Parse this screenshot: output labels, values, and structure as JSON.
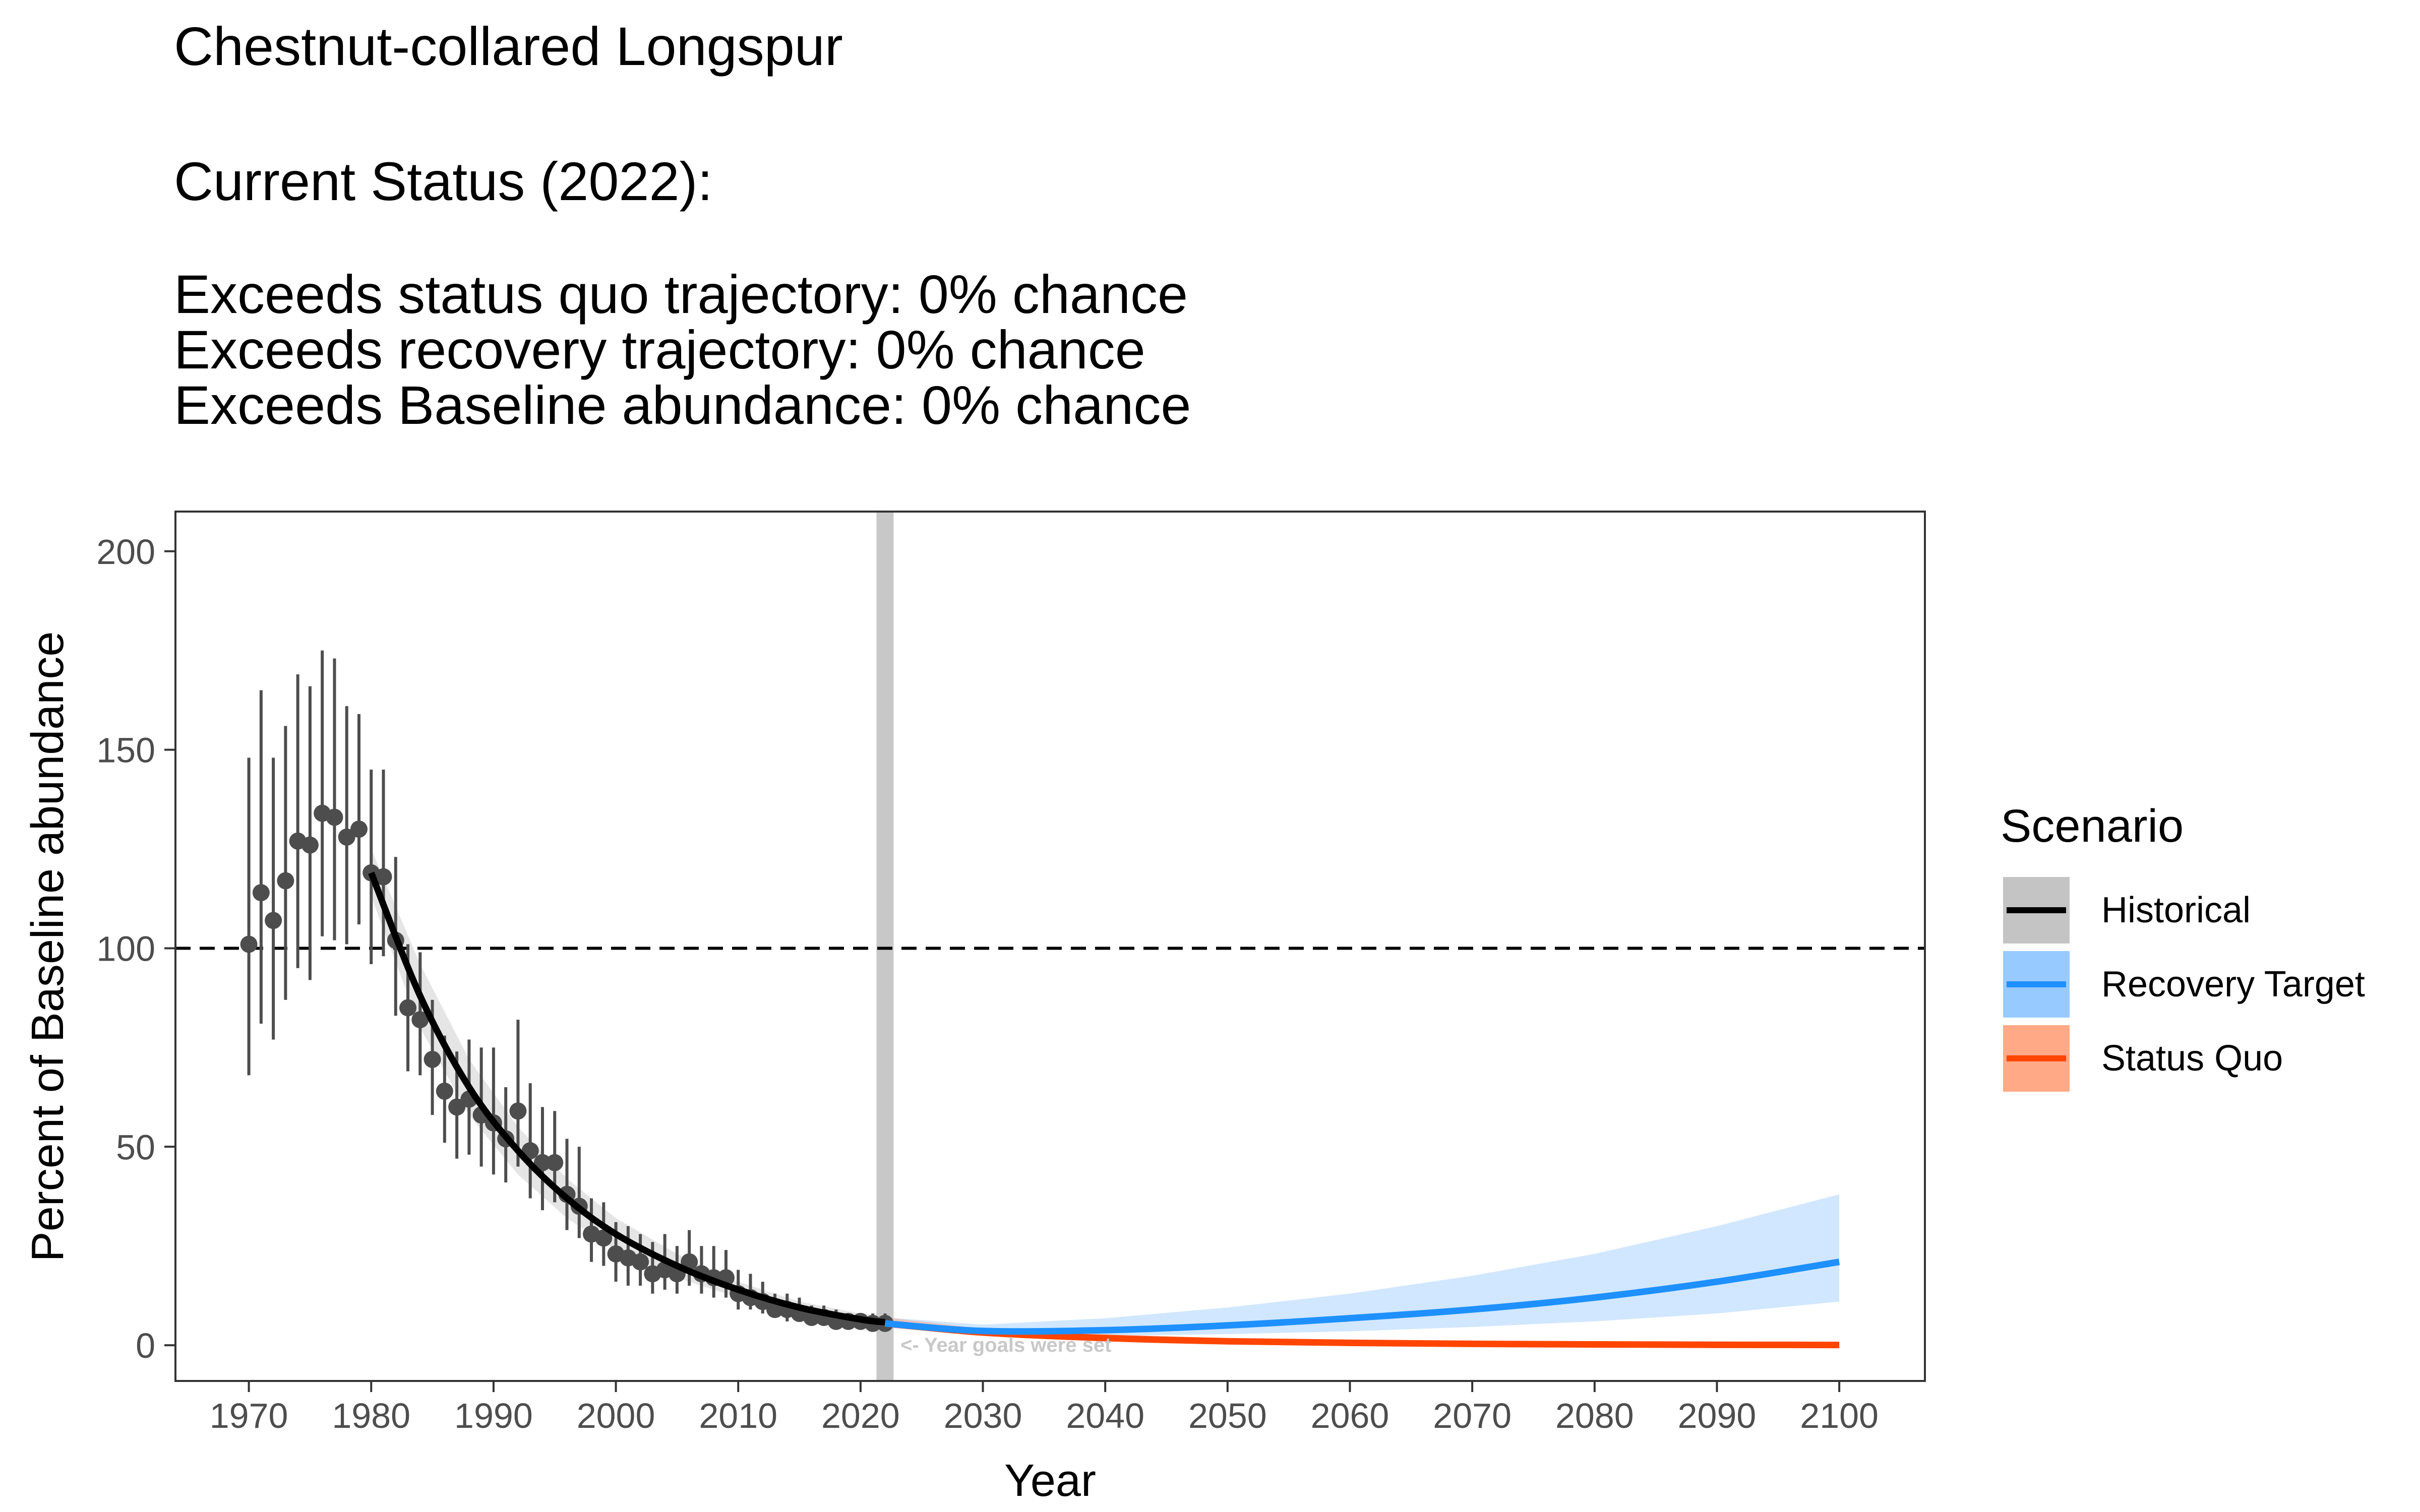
{
  "header": {
    "title": "Chestnut-collared Longspur",
    "status_heading": "Current Status (2022):",
    "lines": [
      "Exceeds status quo trajectory: 0% chance",
      "Exceeds recovery trajectory: 0% chance",
      "Exceeds Baseline abundance: 0% chance"
    ]
  },
  "chart_data": {
    "type": "line",
    "xlabel": "Year",
    "ylabel": "Percent of Baseline abundance",
    "xlim": [
      1964,
      2107
    ],
    "ylim": [
      -9,
      210
    ],
    "x_ticks": [
      1970,
      1980,
      1990,
      2000,
      2010,
      2020,
      2030,
      2040,
      2050,
      2060,
      2070,
      2080,
      2090,
      2100
    ],
    "y_ticks": [
      0,
      50,
      100,
      150,
      200
    ],
    "grid": false,
    "baseline_value": 100,
    "goal_year": 2022,
    "annotation": "<- Year goals were set",
    "legend": {
      "title": "Scenario",
      "position": "right",
      "items": [
        {
          "label": "Historical",
          "line_color": "#000000",
          "fill_color": "#bebebe"
        },
        {
          "label": "Recovery Target",
          "line_color": "#1e90ff",
          "fill_color": "#8cc4ff"
        },
        {
          "label": "Status Quo",
          "line_color": "#ff4500",
          "fill_color": "#ffa07a"
        }
      ]
    },
    "observations": [
      {
        "year": 1970,
        "value": 101,
        "lower": 68,
        "upper": 148
      },
      {
        "year": 1971,
        "value": 114,
        "lower": 81,
        "upper": 165
      },
      {
        "year": 1972,
        "value": 107,
        "lower": 77,
        "upper": 148
      },
      {
        "year": 1973,
        "value": 117,
        "lower": 87,
        "upper": 156
      },
      {
        "year": 1974,
        "value": 127,
        "lower": 95,
        "upper": 169
      },
      {
        "year": 1975,
        "value": 126,
        "lower": 92,
        "upper": 166
      },
      {
        "year": 1976,
        "value": 134,
        "lower": 103,
        "upper": 175
      },
      {
        "year": 1977,
        "value": 133,
        "lower": 102,
        "upper": 173
      },
      {
        "year": 1978,
        "value": 128,
        "lower": 101,
        "upper": 161
      },
      {
        "year": 1979,
        "value": 130,
        "lower": 106,
        "upper": 159
      },
      {
        "year": 1980,
        "value": 119,
        "lower": 96,
        "upper": 145
      },
      {
        "year": 1981,
        "value": 118,
        "lower": 98,
        "upper": 145
      },
      {
        "year": 1982,
        "value": 102,
        "lower": 83,
        "upper": 123
      },
      {
        "year": 1983,
        "value": 85,
        "lower": 69,
        "upper": 101
      },
      {
        "year": 1984,
        "value": 82,
        "lower": 68,
        "upper": 99
      },
      {
        "year": 1985,
        "value": 72,
        "lower": 58,
        "upper": 87
      },
      {
        "year": 1986,
        "value": 64,
        "lower": 51,
        "upper": 78
      },
      {
        "year": 1987,
        "value": 60,
        "lower": 47,
        "upper": 74
      },
      {
        "year": 1988,
        "value": 62,
        "lower": 48,
        "upper": 77
      },
      {
        "year": 1989,
        "value": 58,
        "lower": 45,
        "upper": 75
      },
      {
        "year": 1990,
        "value": 56,
        "lower": 43,
        "upper": 75
      },
      {
        "year": 1991,
        "value": 52,
        "lower": 41,
        "upper": 65
      },
      {
        "year": 1992,
        "value": 59,
        "lower": 45,
        "upper": 82
      },
      {
        "year": 1993,
        "value": 49,
        "lower": 37,
        "upper": 66
      },
      {
        "year": 1994,
        "value": 46,
        "lower": 34,
        "upper": 60
      },
      {
        "year": 1995,
        "value": 46,
        "lower": 36,
        "upper": 59
      },
      {
        "year": 1996,
        "value": 38,
        "lower": 29,
        "upper": 52
      },
      {
        "year": 1997,
        "value": 35,
        "lower": 27,
        "upper": 50
      },
      {
        "year": 1998,
        "value": 28,
        "lower": 21,
        "upper": 37
      },
      {
        "year": 1999,
        "value": 27,
        "lower": 20,
        "upper": 36
      },
      {
        "year": 2000,
        "value": 23,
        "lower": 16,
        "upper": 31
      },
      {
        "year": 2001,
        "value": 22,
        "lower": 15,
        "upper": 30
      },
      {
        "year": 2002,
        "value": 21,
        "lower": 15,
        "upper": 28
      },
      {
        "year": 2003,
        "value": 18,
        "lower": 13,
        "upper": 26
      },
      {
        "year": 2004,
        "value": 19,
        "lower": 14,
        "upper": 28
      },
      {
        "year": 2005,
        "value": 18,
        "lower": 13,
        "upper": 25
      },
      {
        "year": 2006,
        "value": 21,
        "lower": 15,
        "upper": 29
      },
      {
        "year": 2007,
        "value": 18,
        "lower": 13,
        "upper": 25
      },
      {
        "year": 2008,
        "value": 17,
        "lower": 12,
        "upper": 25
      },
      {
        "year": 2009,
        "value": 17,
        "lower": 12,
        "upper": 24
      },
      {
        "year": 2010,
        "value": 13,
        "lower": 9,
        "upper": 19
      },
      {
        "year": 2011,
        "value": 12,
        "lower": 9,
        "upper": 18
      },
      {
        "year": 2012,
        "value": 11,
        "lower": 8,
        "upper": 16
      },
      {
        "year": 2013,
        "value": 9,
        "lower": 7,
        "upper": 13
      },
      {
        "year": 2014,
        "value": 9,
        "lower": 6,
        "upper": 13
      },
      {
        "year": 2015,
        "value": 8,
        "lower": 6,
        "upper": 12
      },
      {
        "year": 2016,
        "value": 7,
        "lower": 5,
        "upper": 10
      },
      {
        "year": 2017,
        "value": 7,
        "lower": 5,
        "upper": 10
      },
      {
        "year": 2018,
        "value": 6,
        "lower": 5,
        "upper": 9
      },
      {
        "year": 2019,
        "value": 6,
        "lower": 4,
        "upper": 8
      },
      {
        "year": 2020,
        "value": 6,
        "lower": 4,
        "upper": 8
      },
      {
        "year": 2021,
        "value": 5.5,
        "lower": 4,
        "upper": 8
      },
      {
        "year": 2022,
        "value": 5.5,
        "lower": 4,
        "upper": 8
      }
    ],
    "series": [
      {
        "name": "Historical",
        "x": [
          1980,
          1984,
          1988,
          1992,
          1996,
          2000,
          2005,
          2010,
          2015,
          2020,
          2022
        ],
        "y": [
          119,
          88,
          65,
          49,
          37,
          28,
          20,
          14,
          9.5,
          6.5,
          5.8
        ],
        "lower": [
          113,
          80,
          58,
          43,
          32,
          24,
          17,
          12,
          8,
          5.2,
          4.7
        ],
        "upper": [
          125,
          96,
          72,
          55,
          42,
          32,
          23,
          16,
          11,
          8,
          7.2
        ]
      },
      {
        "name": "Recovery Target",
        "x": [
          2022,
          2030,
          2040,
          2050,
          2060,
          2070,
          2080,
          2090,
          2100
        ],
        "y": [
          5.5,
          3.6,
          3.8,
          5,
          6.8,
          9,
          12,
          16,
          21
        ],
        "lower": [
          4.5,
          2.5,
          2.4,
          2.8,
          3.5,
          4.6,
          6,
          8,
          11
        ],
        "upper": [
          7,
          5.2,
          6.8,
          9.5,
          13,
          17.5,
          23,
          30,
          38
        ]
      },
      {
        "name": "Status Quo",
        "x": [
          2022,
          2030,
          2040,
          2050,
          2060,
          2070,
          2080,
          2090,
          2100
        ],
        "y": [
          5.5,
          3.2,
          1.8,
          1,
          0.6,
          0.35,
          0.2,
          0.12,
          0.07
        ],
        "lower": [
          4.5,
          2.5,
          1.2,
          0.6,
          0.3,
          0.15,
          0.08,
          0.04,
          0.02
        ],
        "upper": [
          7,
          4.2,
          2.8,
          1.8,
          1.2,
          0.8,
          0.5,
          0.35,
          0.25
        ]
      }
    ]
  }
}
